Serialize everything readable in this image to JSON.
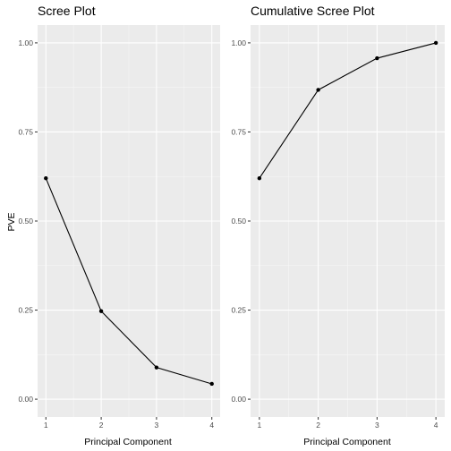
{
  "chart_data": [
    {
      "type": "line",
      "title": "Scree Plot",
      "xlabel": "Principal Component",
      "ylabel": "PVE",
      "x": [
        1,
        2,
        3,
        4
      ],
      "y": [
        0.62,
        0.247,
        0.089,
        0.043
      ],
      "xlim": [
        1,
        4
      ],
      "ylim": [
        0,
        1
      ],
      "x_ticks": [
        1,
        2,
        3,
        4
      ],
      "y_ticks": [
        0,
        0.25,
        0.5,
        0.75,
        1
      ],
      "x_tick_labels": [
        "1",
        "2",
        "3",
        "4"
      ],
      "y_tick_labels": [
        "0.00",
        "0.25",
        "0.50",
        "0.75",
        "1.00"
      ],
      "grid": true
    },
    {
      "type": "line",
      "title": "Cumulative Scree Plot",
      "xlabel": "Principal Component",
      "ylabel": "",
      "x": [
        1,
        2,
        3,
        4
      ],
      "y": [
        0.62,
        0.868,
        0.957,
        1.0
      ],
      "xlim": [
        1,
        4
      ],
      "ylim": [
        0,
        1
      ],
      "x_ticks": [
        1,
        2,
        3,
        4
      ],
      "y_ticks": [
        0,
        0.25,
        0.5,
        0.75,
        1
      ],
      "x_tick_labels": [
        "1",
        "2",
        "3",
        "4"
      ],
      "y_tick_labels": [
        "0.00",
        "0.25",
        "0.50",
        "0.75",
        "1.00"
      ],
      "grid": true
    }
  ],
  "colors": {
    "panel_background": "#ebebeb",
    "grid": "#ffffff",
    "series": "#000000",
    "tick_label": "#4d4d4d"
  }
}
